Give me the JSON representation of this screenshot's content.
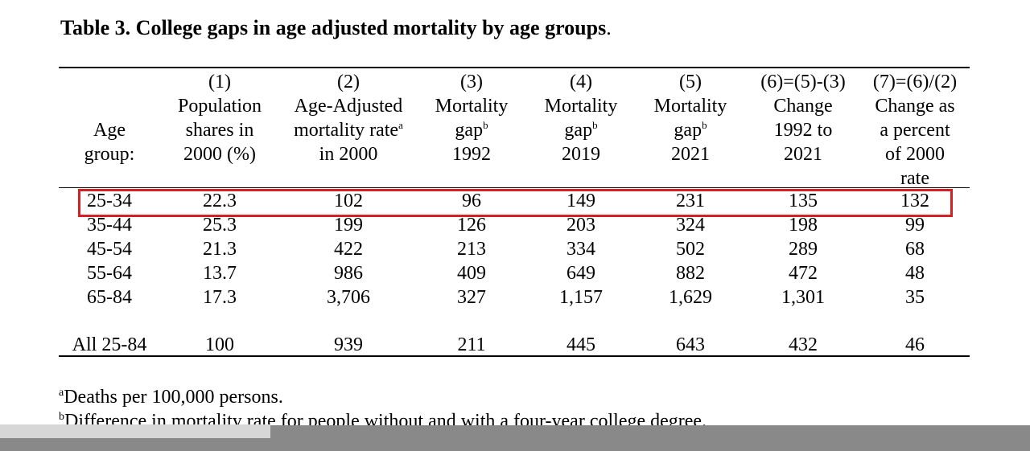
{
  "title": {
    "bold": "Table 3. College gaps in age adjusted mortality by age groups",
    "tail": "."
  },
  "columns": [
    {
      "lines": [
        "",
        "",
        "Age",
        "group:"
      ],
      "sup": null
    },
    {
      "lines": [
        "(1)",
        "Population",
        "shares in",
        "2000 (%)"
      ],
      "sup": null
    },
    {
      "lines": [
        "(2)",
        "Age-Adjusted",
        "mortality rate",
        "in 2000"
      ],
      "sup": {
        "line": 2,
        "mark": "a"
      }
    },
    {
      "lines": [
        "(3)",
        "Mortality",
        "gap",
        "1992"
      ],
      "sup": {
        "line": 2,
        "mark": "b"
      }
    },
    {
      "lines": [
        "(4)",
        "Mortality",
        "gap",
        "2019"
      ],
      "sup": {
        "line": 2,
        "mark": "b"
      }
    },
    {
      "lines": [
        "(5)",
        "Mortality",
        "gap",
        "2021"
      ],
      "sup": {
        "line": 2,
        "mark": "b"
      }
    },
    {
      "lines": [
        "(6)=(5)-(3)",
        "Change",
        "1992 to",
        "2021"
      ],
      "sup": null
    },
    {
      "lines": [
        "(7)=(6)/(2)",
        "Change as",
        "a percent",
        "of 2000",
        "rate"
      ],
      "sup": null
    }
  ],
  "rows": [
    [
      "25-34",
      "22.3",
      "102",
      "96",
      "149",
      "231",
      "135",
      "132"
    ],
    [
      "35-44",
      "25.3",
      "199",
      "126",
      "203",
      "324",
      "198",
      "99"
    ],
    [
      "45-54",
      "21.3",
      "422",
      "213",
      "334",
      "502",
      "289",
      "68"
    ],
    [
      "55-64",
      "13.7",
      "986",
      "409",
      "649",
      "882",
      "472",
      "48"
    ],
    [
      "65-84",
      "17.3",
      "3,706",
      "327",
      "1,157",
      "1,629",
      "1,301",
      "35"
    ]
  ],
  "total_row": [
    "All 25-84",
    "100",
    "939",
    "211",
    "445",
    "643",
    "432",
    "46"
  ],
  "highlighted_row": "25-34",
  "highlight_color": "#d42121",
  "footnotes": [
    {
      "mark": "a",
      "text": "Deaths per 100,000 persons."
    },
    {
      "mark": "b",
      "text": "Difference in mortality rate for people without and with a four-year college degree."
    }
  ]
}
